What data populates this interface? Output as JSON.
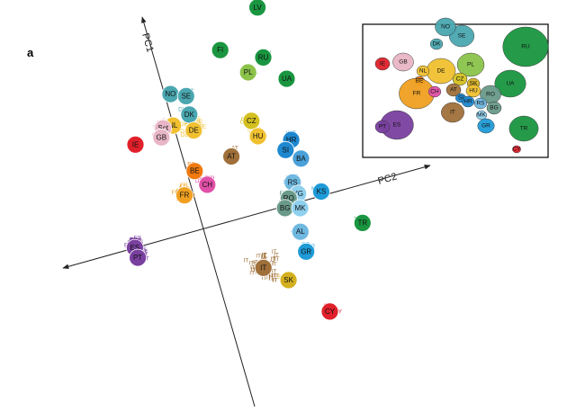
{
  "figure": {
    "panel_letter": "a"
  },
  "chart_data": {
    "type": "scatter",
    "title": "",
    "axes": [
      {
        "name": "PC1",
        "label": "PC1"
      },
      {
        "name": "PC2",
        "label": "PC2"
      }
    ],
    "grid": false,
    "legend": "none",
    "populations": [
      {
        "code": "LV",
        "color": "#1a9641",
        "pc1": 0.92,
        "pc2": 0.49
      },
      {
        "code": "FI",
        "color": "#1a9641",
        "pc1": 0.77,
        "pc2": 0.26
      },
      {
        "code": "RU",
        "color": "#1a9641",
        "pc1": 0.68,
        "pc2": 0.45
      },
      {
        "code": "PL",
        "color": "#8bc34a",
        "pc1": 0.63,
        "pc2": 0.36
      },
      {
        "code": "UA",
        "color": "#1a9641",
        "pc1": 0.55,
        "pc2": 0.53
      },
      {
        "code": "NO",
        "color": "#4aa7b0",
        "pc1": 0.63,
        "pc2": -0.03
      },
      {
        "code": "SE",
        "color": "#4aa7b0",
        "pc1": 0.6,
        "pc2": 0.04
      },
      {
        "code": "DK",
        "color": "#4aa7b0",
        "pc1": 0.51,
        "pc2": 0.03
      },
      {
        "code": "NL",
        "color": "#f0c030",
        "pc1": 0.48,
        "pc2": -0.06
      },
      {
        "code": "Sct",
        "color": "#e8b6c6",
        "pc1": 0.48,
        "pc2": -0.11
      },
      {
        "code": "GB",
        "color": "#e8b6c6",
        "pc1": 0.44,
        "pc2": -0.13
      },
      {
        "code": "IE",
        "color": "#e0202a",
        "pc1": 0.44,
        "pc2": -0.26
      },
      {
        "code": "DE",
        "color": "#f0c030",
        "pc1": 0.43,
        "pc2": 0.03
      },
      {
        "code": "CZ",
        "color": "#d4c020",
        "pc1": 0.4,
        "pc2": 0.31
      },
      {
        "code": "HU",
        "color": "#f0c030",
        "pc1": 0.32,
        "pc2": 0.32
      },
      {
        "code": "AT",
        "color": "#a0703a",
        "pc1": 0.26,
        "pc2": 0.17
      },
      {
        "code": "BE",
        "color": "#f07a10",
        "pc1": 0.24,
        "pc2": -0.02
      },
      {
        "code": "CH",
        "color": "#e050a8",
        "pc1": 0.16,
        "pc2": 0.02
      },
      {
        "code": "FR",
        "color": "#f0a020",
        "pc1": 0.14,
        "pc2": -0.1
      },
      {
        "code": "HR",
        "color": "#1e88d0",
        "pc1": 0.26,
        "pc2": 0.47
      },
      {
        "code": "SI",
        "color": "#1e88d0",
        "pc1": 0.22,
        "pc2": 0.43
      },
      {
        "code": "BA",
        "color": "#4aa0d8",
        "pc1": 0.16,
        "pc2": 0.49
      },
      {
        "code": "RS",
        "color": "#6fb8e0",
        "pc1": 0.06,
        "pc2": 0.42
      },
      {
        "code": "YG",
        "color": "#8fd0ee",
        "pc1": 0.0,
        "pc2": 0.43
      },
      {
        "code": "RO",
        "color": "#6a9a8a",
        "pc1": -0.01,
        "pc2": 0.38
      },
      {
        "code": "BG",
        "color": "#6a9a8a",
        "pc1": -0.05,
        "pc2": 0.35
      },
      {
        "code": "MK",
        "color": "#8fd0ee",
        "pc1": -0.07,
        "pc2": 0.42
      },
      {
        "code": "KS",
        "color": "#1e9bd8",
        "pc1": -0.02,
        "pc2": 0.54
      },
      {
        "code": "AL",
        "color": "#6fb8e0",
        "pc1": -0.18,
        "pc2": 0.39
      },
      {
        "code": "GR",
        "color": "#1e9bd8",
        "pc1": -0.28,
        "pc2": 0.39
      },
      {
        "code": "TR",
        "color": "#1a9641",
        "pc1": -0.22,
        "pc2": 0.69
      },
      {
        "code": "IT",
        "color": "#a0703a",
        "pc1": -0.3,
        "pc2": 0.17
      },
      {
        "code": "SK",
        "color": "#d4b020",
        "pc1": -0.39,
        "pc2": 0.27
      },
      {
        "code": "CY",
        "color": "#e0202a",
        "pc1": -0.59,
        "pc2": 0.42
      },
      {
        "code": "ES",
        "color": "#7a40a0",
        "pc1": -0.04,
        "pc2": -0.4
      },
      {
        "code": "PT",
        "color": "#7a40a0",
        "pc1": -0.09,
        "pc2": -0.4
      }
    ]
  },
  "inset_map": {
    "labels": [
      {
        "code": "IE",
        "color": "#e0202a"
      },
      {
        "code": "GB",
        "color": "#e8b6c6"
      },
      {
        "code": "DK",
        "color": "#4aa7b0"
      },
      {
        "code": "SE",
        "color": "#4aa7b0"
      },
      {
        "code": "NO",
        "color": "#4aa7b0"
      },
      {
        "code": "RU",
        "color": "#1a9641"
      },
      {
        "code": "PL",
        "color": "#8bc34a"
      },
      {
        "code": "DE",
        "color": "#f0c030"
      },
      {
        "code": "NL",
        "color": "#f0c030"
      },
      {
        "code": "BE",
        "color": "#f07a10"
      },
      {
        "code": "FR",
        "color": "#f0a020"
      },
      {
        "code": "CH",
        "color": "#e050a8"
      },
      {
        "code": "CZ",
        "color": "#d4c020"
      },
      {
        "code": "SK",
        "color": "#d4b020"
      },
      {
        "code": "AT",
        "color": "#a0703a"
      },
      {
        "code": "HU",
        "color": "#f0c030"
      },
      {
        "code": "UA",
        "color": "#1a9641"
      },
      {
        "code": "RO",
        "color": "#6a9a8a"
      },
      {
        "code": "BG",
        "color": "#6a9a8a"
      },
      {
        "code": "ES",
        "color": "#7a40a0"
      },
      {
        "code": "PT",
        "color": "#7a40a0"
      },
      {
        "code": "IT",
        "color": "#a0703a"
      },
      {
        "code": "SI",
        "color": "#1e88d0"
      },
      {
        "code": "HR",
        "color": "#1e88d0"
      },
      {
        "code": "RS",
        "color": "#6fb8e0"
      },
      {
        "code": "MK",
        "color": "#8fd0ee"
      },
      {
        "code": "GR",
        "color": "#1e9bd8"
      },
      {
        "code": "TR",
        "color": "#1a9641"
      },
      {
        "code": "CY",
        "color": "#e0202a"
      }
    ]
  }
}
